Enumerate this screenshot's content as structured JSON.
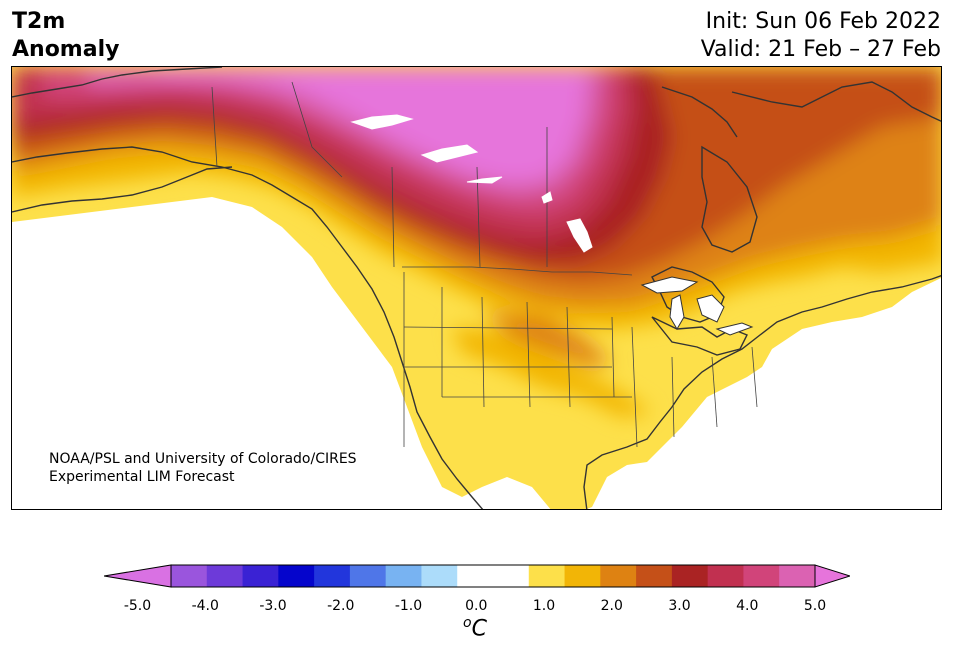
{
  "title": {
    "line1": "T2m",
    "line2": "Anomaly"
  },
  "init": {
    "line1": "Init: Sun 06 Feb 2022",
    "line2": "Valid: 21 Feb – 27 Feb"
  },
  "credit": {
    "line1": "NOAA/PSL and University of Colorado/CIRES",
    "line2": "Experimental LIM Forecast"
  },
  "colorbar": {
    "unit_main": "C",
    "unit_sup": "o",
    "ticks": [
      "-5.0",
      "-4.0",
      "-3.0",
      "-2.0",
      "-1.0",
      "0.0",
      "1.0",
      "2.0",
      "3.0",
      "4.0",
      "5.0"
    ],
    "colors": [
      "#d971e3",
      "#9a55dd",
      "#6d3ad9",
      "#3a22d4",
      "#0505cc",
      "#2236dc",
      "#4f76e8",
      "#78b3f2",
      "#acdcfa",
      "#ffffff",
      "#ffffff",
      "#fde04a",
      "#f2b506",
      "#de8212",
      "#c55018",
      "#aa2323",
      "#c13050",
      "#d1447a",
      "#db62b2",
      "#e674db"
    ]
  }
}
